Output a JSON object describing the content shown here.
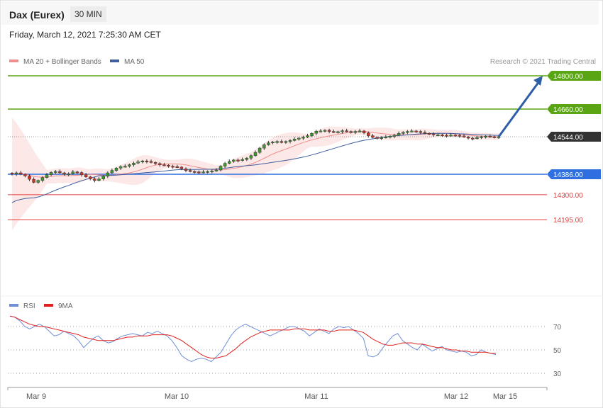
{
  "header": {
    "instrument": "Dax (Eurex)",
    "timeframe": "30 MIN"
  },
  "date_line": "Friday, March 12, 2021 7:25:30 AM CET",
  "legend": {
    "ma20": "MA 20 + Bollinger Bands",
    "ma50": "MA 50",
    "credit": "Research © 2021 Trading Central"
  },
  "rsi_legend": {
    "rsi": "RSI",
    "ma9": "9MA"
  },
  "colors": {
    "resistance": "#5aa514",
    "pivot": "#2f6fe0",
    "support": "#e23b3b",
    "bollinger": "#fde4e4",
    "ma20": "#f08d8d",
    "ma50": "#3f5f9e",
    "rsi": "#6f8fd6",
    "rsi_ma": "#e0201e",
    "arrow": "#2d5ea6",
    "current": "#333333"
  },
  "chart_data": [
    {
      "type": "candlestick",
      "title": "Dax (Eurex)",
      "x_labels": [
        "Mar 9",
        "Mar 10",
        "Mar 11",
        "Mar 12",
        "Mar 15"
      ],
      "ylim": [
        14050,
        14840
      ],
      "levels": [
        {
          "label": "14800.00",
          "value": 14800,
          "kind": "resistance"
        },
        {
          "label": "14660.00",
          "value": 14660,
          "kind": "resistance"
        },
        {
          "label": "14544.00",
          "value": 14544,
          "kind": "current"
        },
        {
          "label": "14386.00",
          "value": 14386,
          "kind": "pivot"
        },
        {
          "label": "14300.00",
          "value": 14300,
          "kind": "support"
        },
        {
          "label": "14195.00",
          "value": 14195,
          "kind": "support"
        }
      ],
      "close_series": [
        14387,
        14392,
        14386,
        14379,
        14365,
        14352,
        14360,
        14372,
        14384,
        14394,
        14398,
        14392,
        14386,
        14388,
        14396,
        14393,
        14384,
        14375,
        14367,
        14360,
        14366,
        14378,
        14392,
        14402,
        14412,
        14418,
        14420,
        14426,
        14433,
        14438,
        14442,
        14440,
        14436,
        14431,
        14426,
        14424,
        14420,
        14418,
        14416,
        14409,
        14402,
        14398,
        14396,
        14394,
        14396,
        14398,
        14400,
        14404,
        14420,
        14432,
        14440,
        14446,
        14444,
        14448,
        14454,
        14464,
        14478,
        14496,
        14510,
        14518,
        14522,
        14524,
        14520,
        14524,
        14528,
        14534,
        14538,
        14542,
        14548,
        14558,
        14567,
        14568,
        14571,
        14566,
        14563,
        14565,
        14569,
        14566,
        14563,
        14566,
        14568,
        14560,
        14548,
        14541,
        14538,
        14540,
        14543,
        14546,
        14550,
        14558,
        14563,
        14566,
        14568,
        14566,
        14562,
        14558,
        14556,
        14552,
        14552,
        14550,
        14548,
        14551,
        14550,
        14547,
        14543,
        14538,
        14536,
        14540,
        14544,
        14546,
        14544,
        14543,
        14544
      ],
      "forecast_arrow": {
        "from": 14544,
        "to": 14800
      }
    },
    {
      "type": "line",
      "title": "RSI",
      "y_ticks": [
        70,
        50,
        30
      ],
      "ylim": [
        20,
        82
      ],
      "series": [
        {
          "name": "RSI",
          "values": [
            79,
            78,
            75,
            70,
            68,
            70,
            72,
            70,
            66,
            62,
            63,
            66,
            64,
            62,
            58,
            52,
            56,
            60,
            62,
            58,
            56,
            57,
            60,
            62,
            63,
            64,
            63,
            62,
            65,
            64,
            66,
            64,
            62,
            58,
            52,
            45,
            42,
            40,
            42,
            43,
            42,
            40,
            44,
            48,
            55,
            62,
            67,
            70,
            72,
            70,
            68,
            66,
            64,
            62,
            64,
            66,
            68,
            70,
            70,
            68,
            66,
            62,
            65,
            68,
            66,
            64,
            68,
            70,
            69,
            70,
            67,
            64,
            60,
            45,
            44,
            46,
            52,
            57,
            62,
            64,
            58,
            55,
            52,
            50,
            55,
            52,
            49,
            51,
            53,
            50,
            49,
            48,
            49,
            48,
            45,
            46,
            50,
            48,
            47,
            46
          ]
        },
        {
          "name": "9MA",
          "values": [
            79,
            78,
            76,
            74,
            72,
            71,
            70,
            70,
            69,
            68,
            67,
            66,
            65,
            64,
            63,
            61,
            60,
            59,
            58,
            58,
            58,
            58,
            59,
            60,
            61,
            61,
            62,
            62,
            62,
            63,
            63,
            63,
            63,
            62,
            60,
            58,
            55,
            52,
            49,
            46,
            44,
            43,
            43,
            44,
            45,
            48,
            51,
            55,
            58,
            61,
            63,
            65,
            66,
            67,
            67,
            67,
            67,
            67,
            68,
            68,
            68,
            67,
            67,
            67,
            67,
            66,
            66,
            67,
            67,
            67,
            67,
            66,
            65,
            62,
            59,
            57,
            55,
            54,
            54,
            55,
            56,
            56,
            56,
            55,
            55,
            54,
            53,
            52,
            52,
            51,
            50,
            50,
            49,
            49,
            48,
            48,
            48,
            48,
            47,
            47
          ]
        }
      ]
    }
  ]
}
